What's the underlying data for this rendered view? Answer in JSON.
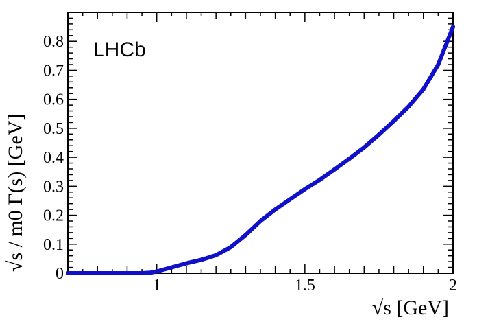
{
  "chart_data": {
    "type": "line",
    "annotation": "LHCb",
    "xlabel": "√s [GeV]",
    "ylabel": "√s / m0 Γ(s) [GeV]",
    "xlim": [
      0.7,
      2.0
    ],
    "ylim": [
      0,
      0.9
    ],
    "x_ticks": [
      1,
      1.5,
      2
    ],
    "x_tick_labels": [
      "1",
      "1.5",
      "2"
    ],
    "y_ticks": [
      0,
      0.1,
      0.2,
      0.3,
      0.4,
      0.5,
      0.6,
      0.7,
      0.8
    ],
    "y_tick_labels": [
      "0",
      "0.1",
      "0.2",
      "0.3",
      "0.4",
      "0.5",
      "0.6",
      "0.7",
      "0.8"
    ],
    "series_color": "#1010c8",
    "x": [
      0.7,
      0.8,
      0.9,
      0.95,
      0.98,
      1.0,
      1.05,
      1.1,
      1.15,
      1.2,
      1.25,
      1.3,
      1.35,
      1.4,
      1.45,
      1.5,
      1.55,
      1.6,
      1.65,
      1.7,
      1.75,
      1.8,
      1.85,
      1.9,
      1.95,
      2.0
    ],
    "y": [
      0.0,
      0.0,
      0.0,
      0.0,
      0.002,
      0.006,
      0.02,
      0.034,
      0.046,
      0.062,
      0.09,
      0.132,
      0.18,
      0.22,
      0.255,
      0.29,
      0.322,
      0.358,
      0.395,
      0.434,
      0.478,
      0.525,
      0.575,
      0.635,
      0.72,
      0.85
    ]
  }
}
